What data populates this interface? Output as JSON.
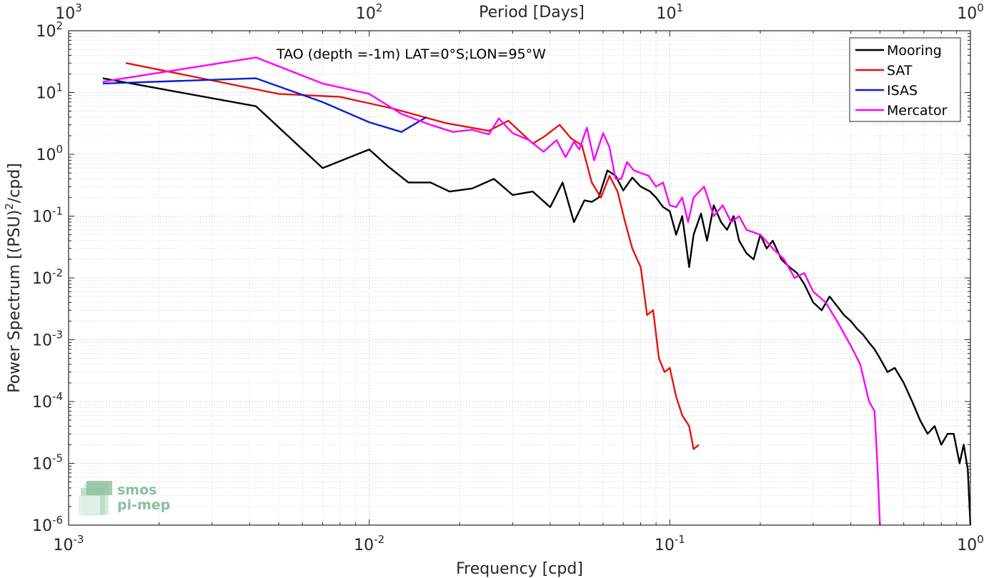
{
  "chart_data": {
    "type": "line",
    "title": "TAO (depth =-1m) LAT=0°S;LON=95°W",
    "xlabel": "Frequency [cpd]",
    "ylabel": "Power Spectrum [(PSU)²/cpd]",
    "ylabel_parts": {
      "main": "Power Spectrum [(PSU)",
      "sup": "2",
      "tail": "/cpd]"
    },
    "top_xlabel": "Period [Days]",
    "x_scale": "log",
    "y_scale": "log",
    "xlim": [
      0.001,
      1
    ],
    "ylim": [
      1e-06,
      100
    ],
    "grid": true,
    "legend_position": "top-right",
    "x_ticks": [
      {
        "value": 0.001,
        "base": "10",
        "exp": "-3"
      },
      {
        "value": 0.01,
        "base": "10",
        "exp": "-2"
      },
      {
        "value": 0.1,
        "base": "10",
        "exp": "-1"
      },
      {
        "value": 1,
        "base": "10",
        "exp": "0"
      }
    ],
    "top_ticks": [
      {
        "value": 0.001,
        "base": "10",
        "exp": "3"
      },
      {
        "value": 0.01,
        "base": "10",
        "exp": "2"
      },
      {
        "value": 0.1,
        "base": "10",
        "exp": "1"
      },
      {
        "value": 1,
        "base": "10",
        "exp": "0"
      }
    ],
    "y_ticks": [
      {
        "value": 100,
        "base": "10",
        "exp": "2"
      },
      {
        "value": 10,
        "base": "10",
        "exp": "1"
      },
      {
        "value": 1,
        "base": "10",
        "exp": "0"
      },
      {
        "value": 0.1,
        "base": "10",
        "exp": "-1"
      },
      {
        "value": 0.01,
        "base": "10",
        "exp": "-2"
      },
      {
        "value": 0.001,
        "base": "10",
        "exp": "-3"
      },
      {
        "value": 0.0001,
        "base": "10",
        "exp": "-4"
      },
      {
        "value": 1e-05,
        "base": "10",
        "exp": "-5"
      },
      {
        "value": 1e-06,
        "base": "10",
        "exp": "-6"
      }
    ],
    "series": [
      {
        "name": "Mooring",
        "color": "#000000",
        "x": [
          0.0013,
          0.0042,
          0.007,
          0.01,
          0.0115,
          0.0135,
          0.016,
          0.0185,
          0.022,
          0.026,
          0.03,
          0.035,
          0.04,
          0.044,
          0.048,
          0.052,
          0.055,
          0.058,
          0.062,
          0.066,
          0.07,
          0.075,
          0.08,
          0.086,
          0.09,
          0.095,
          0.1,
          0.105,
          0.11,
          0.116,
          0.12,
          0.127,
          0.133,
          0.14,
          0.148,
          0.155,
          0.163,
          0.17,
          0.18,
          0.19,
          0.2,
          0.21,
          0.22,
          0.235,
          0.25,
          0.265,
          0.28,
          0.3,
          0.32,
          0.34,
          0.36,
          0.38,
          0.4,
          0.42,
          0.44,
          0.46,
          0.48,
          0.5,
          0.53,
          0.56,
          0.6,
          0.64,
          0.68,
          0.72,
          0.76,
          0.8,
          0.84,
          0.88,
          0.92,
          0.95,
          0.98,
          1.0
        ],
        "y": [
          17,
          6,
          0.6,
          1.2,
          0.65,
          0.35,
          0.35,
          0.25,
          0.28,
          0.4,
          0.22,
          0.25,
          0.14,
          0.35,
          0.08,
          0.18,
          0.17,
          0.2,
          0.55,
          0.45,
          0.26,
          0.42,
          0.3,
          0.25,
          0.2,
          0.14,
          0.12,
          0.05,
          0.1,
          0.015,
          0.05,
          0.11,
          0.04,
          0.15,
          0.08,
          0.06,
          0.1,
          0.04,
          0.025,
          0.02,
          0.05,
          0.03,
          0.04,
          0.02,
          0.015,
          0.012,
          0.008,
          0.004,
          0.003,
          0.005,
          0.0035,
          0.0025,
          0.002,
          0.0015,
          0.0012,
          0.0009,
          0.0007,
          0.0005,
          0.0003,
          0.00035,
          0.0002,
          0.0001,
          5e-05,
          3e-05,
          4e-05,
          2e-05,
          3e-05,
          3e-05,
          1e-05,
          2e-05,
          8e-06,
          1e-06
        ]
      },
      {
        "name": "SAT",
        "color": "#e8120b",
        "x": [
          0.00155,
          0.005,
          0.008,
          0.012,
          0.018,
          0.025,
          0.029,
          0.035,
          0.038,
          0.043,
          0.047,
          0.051,
          0.055,
          0.059,
          0.063,
          0.067,
          0.071,
          0.075,
          0.08,
          0.084,
          0.088,
          0.092,
          0.096,
          0.1,
          0.105,
          0.11,
          0.116,
          0.12,
          0.125
        ],
        "y": [
          30,
          9.5,
          8.5,
          5.5,
          3.2,
          2.4,
          3.5,
          1.5,
          1.9,
          3.0,
          1.8,
          1.4,
          0.35,
          0.2,
          0.45,
          0.25,
          0.08,
          0.03,
          0.015,
          0.0025,
          0.003,
          0.0005,
          0.0003,
          0.00035,
          0.00012,
          6e-05,
          4e-05,
          1.7e-05,
          2e-05
        ]
      },
      {
        "name": "ISAS",
        "color": "#0b1ed6",
        "x": [
          0.0013,
          0.0042,
          0.007,
          0.01,
          0.0128,
          0.0155
        ],
        "y": [
          14,
          17,
          7,
          3.3,
          2.3,
          4.0
        ]
      },
      {
        "name": "Mercator",
        "color": "#ff00ff",
        "x": [
          0.0013,
          0.0042,
          0.007,
          0.01,
          0.0128,
          0.016,
          0.019,
          0.022,
          0.025,
          0.027,
          0.03,
          0.034,
          0.038,
          0.042,
          0.045,
          0.048,
          0.05,
          0.053,
          0.056,
          0.06,
          0.063,
          0.066,
          0.069,
          0.072,
          0.076,
          0.08,
          0.085,
          0.09,
          0.095,
          0.1,
          0.105,
          0.11,
          0.115,
          0.12,
          0.13,
          0.14,
          0.15,
          0.16,
          0.17,
          0.18,
          0.2,
          0.22,
          0.24,
          0.26,
          0.28,
          0.3,
          0.33,
          0.36,
          0.4,
          0.43,
          0.46,
          0.48,
          0.49,
          0.5
        ],
        "y": [
          15,
          37,
          14,
          9.5,
          4.5,
          3.0,
          2.3,
          2.5,
          2.1,
          3.8,
          2.2,
          1.7,
          1.1,
          1.7,
          0.9,
          1.6,
          1.2,
          2.7,
          0.8,
          2.2,
          1.3,
          0.4,
          0.4,
          0.75,
          0.55,
          0.5,
          0.45,
          0.3,
          0.35,
          0.15,
          0.14,
          0.2,
          0.08,
          0.2,
          0.3,
          0.1,
          0.15,
          0.08,
          0.1,
          0.06,
          0.05,
          0.03,
          0.02,
          0.01,
          0.012,
          0.006,
          0.004,
          0.002,
          0.0008,
          0.0004,
          0.0001,
          7e-05,
          1e-05,
          1e-06
        ]
      }
    ]
  },
  "logo": {
    "line1": "smos",
    "line2": "pi-mep",
    "color": "#8cbf9e"
  }
}
